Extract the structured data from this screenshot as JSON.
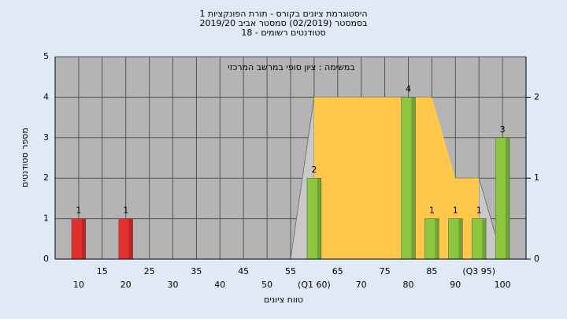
{
  "chart_data": {
    "type": "histogram",
    "title": [
      "היסטוגרמת ציונים בקורס - תורת הפונקציות 1",
      "בסמסטר  (02/2019)  סמסטר אביב 2019/20",
      "סטודנטים רשומים - 18"
    ],
    "annotation": "במשימה : ציון סופי במרשב המרכזי",
    "xlabel": "טווח ציונים",
    "ylabel": "מספר סטודנטים",
    "x": [
      10,
      20,
      60,
      80,
      85,
      90,
      95,
      100
    ],
    "values": [
      1,
      1,
      2,
      4,
      1,
      1,
      1,
      3
    ],
    "colors": [
      "#e03030",
      "#e03030",
      "#8cc63f",
      "#8cc63f",
      "#8cc63f",
      "#8cc63f",
      "#8cc63f",
      "#8cc63f"
    ],
    "area": {
      "x": [
        60,
        85,
        90,
        95
      ],
      "values": [
        2,
        2,
        1,
        1
      ],
      "axis": "y2",
      "color": "#ffc84a"
    },
    "whiskers": {
      "x": [
        55,
        60,
        null,
        95,
        100
      ],
      "values": [
        0,
        2,
        null,
        1,
        0
      ],
      "axis": "y2",
      "color": "#c9c9c9"
    },
    "xlim": [
      5,
      105
    ],
    "ylim": [
      0,
      5
    ],
    "y2lim": [
      0,
      2.5
    ],
    "xticks": [
      10,
      15,
      20,
      25,
      30,
      35,
      40,
      45,
      50,
      55,
      {
        "value": 60,
        "label": "(Q1 60)"
      },
      65,
      70,
      75,
      80,
      85,
      90,
      {
        "value": 95,
        "label": "(Q3 95)"
      },
      100
    ],
    "yticks": [
      0,
      1,
      2,
      3,
      4,
      5
    ],
    "y2ticks": [
      0,
      1,
      2
    ],
    "grid": true,
    "background": "#b4b4b4"
  }
}
